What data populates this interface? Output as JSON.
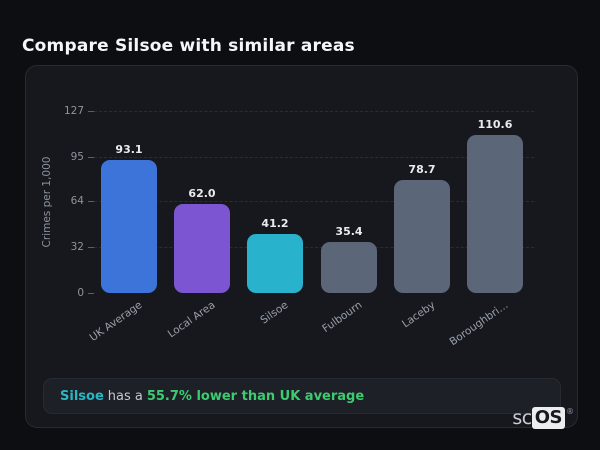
{
  "header": {
    "title": "Compare Silsoe with similar areas"
  },
  "chart_data": {
    "type": "bar",
    "title": "Compare Silsoe with similar areas",
    "xlabel": "",
    "ylabel": "Crimes per 1,000",
    "categories": [
      "UK Average",
      "Local Area",
      "Silsoe",
      "Fulbourn",
      "Laceby",
      "Boroughbri…"
    ],
    "values": [
      93.1,
      62.0,
      41.2,
      35.4,
      78.7,
      110.6
    ],
    "value_labels": [
      "93.1",
      "62.0",
      "41.2",
      "35.4",
      "78.7",
      "110.6"
    ],
    "bar_colors": [
      "#3d74d9",
      "#7c55d2",
      "#29b2cc",
      "#5b6678",
      "#5b6678",
      "#5b6678"
    ],
    "highlight_index": 2,
    "yticks": [
      0,
      32,
      64,
      95,
      127
    ],
    "ylim": [
      0,
      127
    ],
    "grid": "horizontal-dashed",
    "legend": "none"
  },
  "note": {
    "area_label": "Silsoe",
    "connector": "has a",
    "stat": "55.7% lower than UK average"
  },
  "logo": {
    "prefix": "sc",
    "badge": "OS",
    "mark": "®"
  },
  "colors": {
    "page_bg": "#0c0e11",
    "card_bg": "#16181e",
    "note_bg": "#1d2026",
    "accent_teal": "#2ab6c5",
    "accent_green": "#3dcb72",
    "bar_blue": "#3d74d9",
    "bar_purple": "#7c55d2",
    "bar_teal": "#29b2cc",
    "bar_gray": "#5b6678"
  }
}
